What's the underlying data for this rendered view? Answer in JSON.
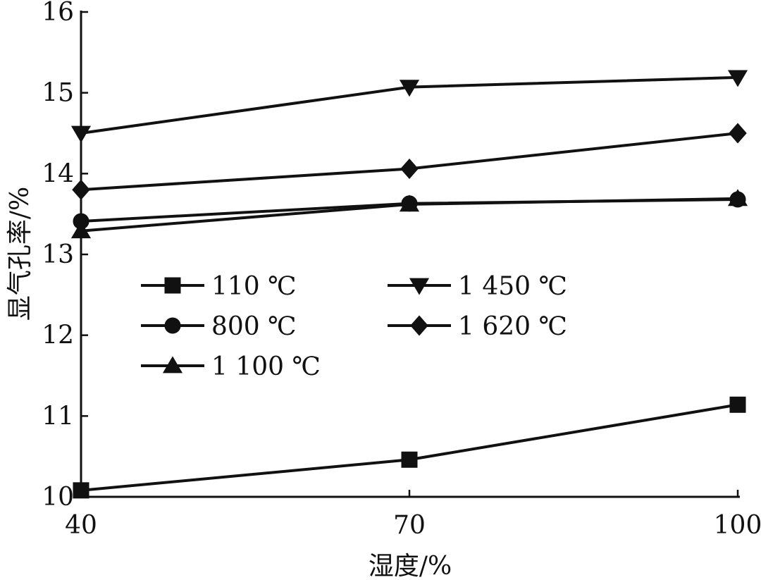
{
  "chart_data": {
    "type": "line",
    "title": "",
    "xlabel": "湿度/%",
    "ylabel": "显气孔率/%",
    "x": [
      40,
      70,
      100
    ],
    "x_ticks": [
      "40",
      "70",
      "100"
    ],
    "y_ticks": [
      "10",
      "11",
      "12",
      "13",
      "14",
      "15",
      "16"
    ],
    "xlim": [
      40,
      100
    ],
    "ylim": [
      10,
      16
    ],
    "grid": false,
    "legend_position": "center-left",
    "line_color": "#111111",
    "series": [
      {
        "name": "110 ℃",
        "marker": "square",
        "values": [
          10.08,
          10.46,
          11.14
        ]
      },
      {
        "name": "800 ℃",
        "marker": "circle",
        "values": [
          13.41,
          13.63,
          13.68
        ]
      },
      {
        "name": "1 100 ℃",
        "marker": "triangle-up",
        "values": [
          13.29,
          13.62,
          13.69
        ]
      },
      {
        "name": "1 450 ℃",
        "marker": "triangle-down",
        "values": [
          14.5,
          15.07,
          15.19
        ]
      },
      {
        "name": "1 620 ℃",
        "marker": "diamond",
        "values": [
          13.8,
          14.06,
          14.5
        ]
      }
    ]
  }
}
